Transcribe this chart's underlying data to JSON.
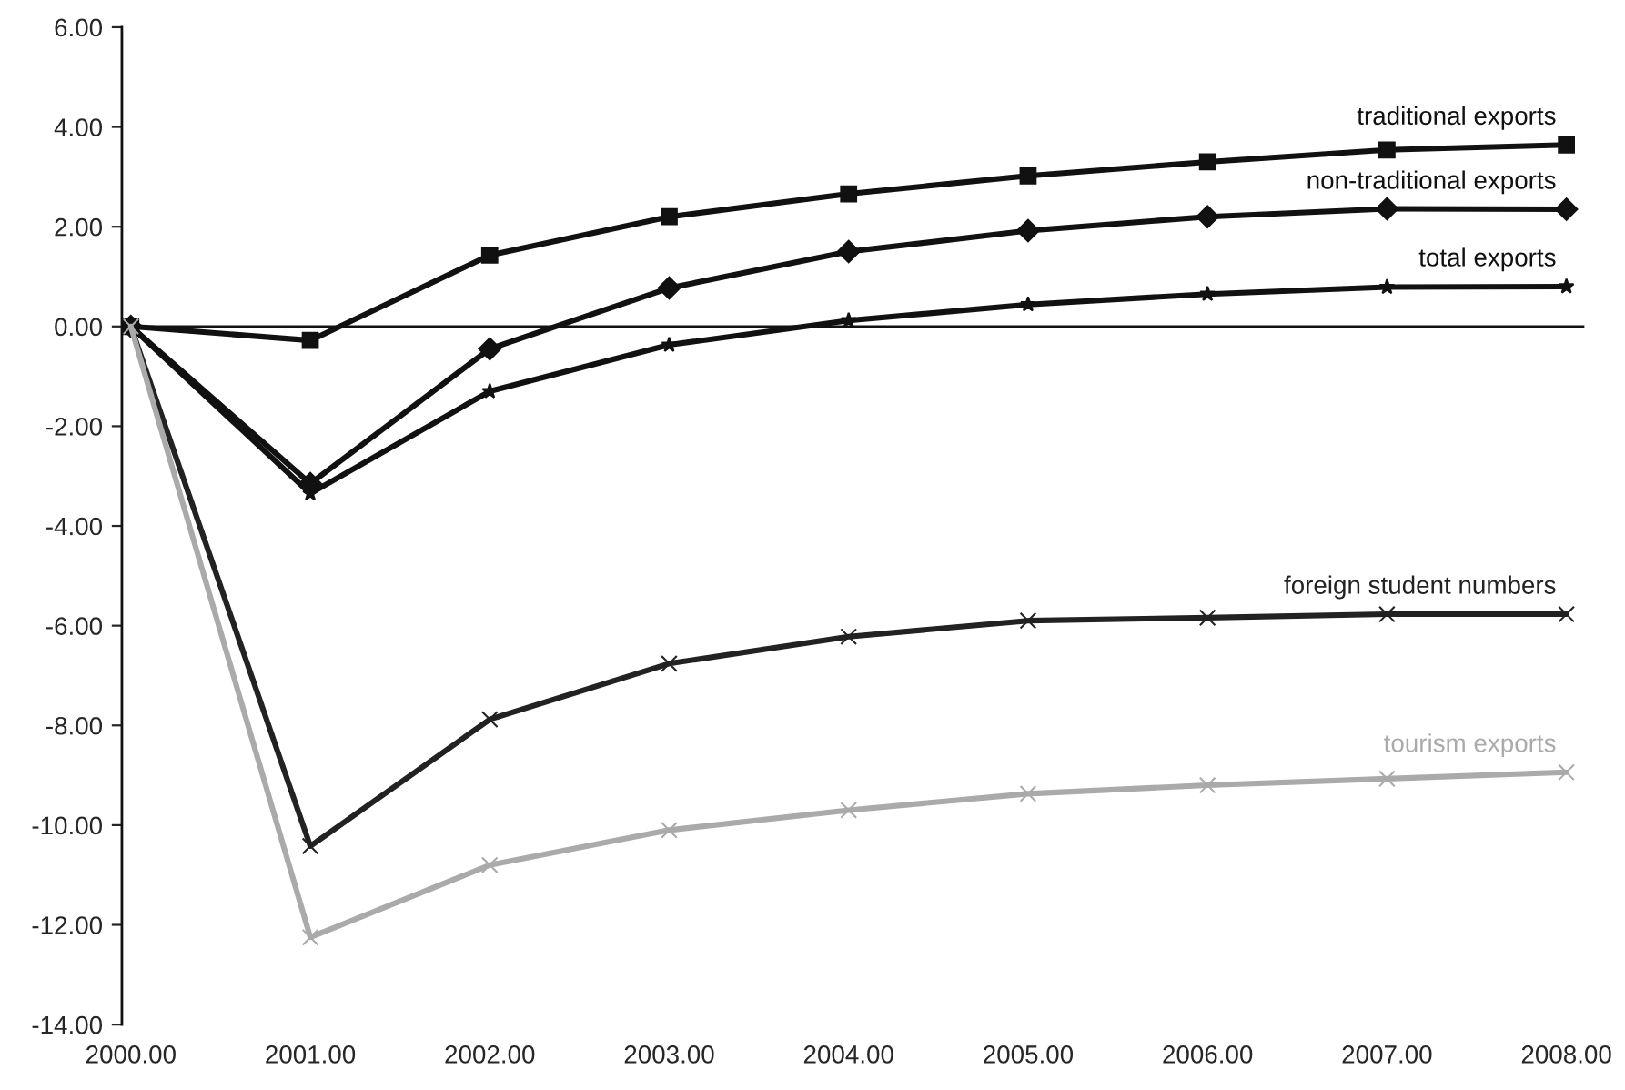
{
  "chart_data": {
    "type": "line",
    "categories": [
      "2000.00",
      "2001.00",
      "2002.00",
      "2003.00",
      "2004.00",
      "2005.00",
      "2006.00",
      "2007.00",
      "2008.00"
    ],
    "series": [
      {
        "name": "traditional exports",
        "color": "#111111",
        "marker": "square",
        "values": [
          0,
          -0.28,
          1.43,
          2.2,
          2.66,
          3.02,
          3.3,
          3.54,
          3.64
        ]
      },
      {
        "name": "non-traditional exports",
        "color": "#111111",
        "marker": "diamond",
        "values": [
          0,
          -3.15,
          -0.45,
          0.77,
          1.5,
          1.92,
          2.2,
          2.36,
          2.35
        ]
      },
      {
        "name": "total exports",
        "color": "#111111",
        "marker": "star",
        "values": [
          0,
          -3.35,
          -1.3,
          -0.37,
          0.12,
          0.44,
          0.65,
          0.79,
          0.8
        ]
      },
      {
        "name": "foreign student numbers",
        "color": "#222222",
        "marker": "cross",
        "values": [
          0,
          -10.42,
          -7.88,
          -6.76,
          -6.22,
          -5.9,
          -5.84,
          -5.77,
          -5.77
        ]
      },
      {
        "name": "tourism exports",
        "color": "#aaaaaa",
        "marker": "cross",
        "values": [
          0,
          -12.25,
          -10.8,
          -10.1,
          -9.7,
          -9.37,
          -9.2,
          -9.07,
          -8.94
        ]
      }
    ],
    "ylim": [
      -14,
      6
    ],
    "yticks": [
      {
        "value": -14,
        "label": "-14.00"
      },
      {
        "value": -12,
        "label": "-12.00"
      },
      {
        "value": -10,
        "label": "-10.00"
      },
      {
        "value": -8,
        "label": "-8.00"
      },
      {
        "value": -6,
        "label": "-6.00"
      },
      {
        "value": -4,
        "label": "-4.00"
      },
      {
        "value": -2,
        "label": "-2.00"
      },
      {
        "value": 0,
        "label": "0.00"
      },
      {
        "value": 2,
        "label": "2.00"
      },
      {
        "value": 4,
        "label": "4.00"
      },
      {
        "value": 6,
        "label": "6.00"
      }
    ],
    "ref_lines": [
      {
        "axis": "y",
        "value": 0,
        "color": "#111111",
        "line_style": "solid"
      }
    ],
    "grid": false,
    "legend": false,
    "line_style": "solid"
  }
}
